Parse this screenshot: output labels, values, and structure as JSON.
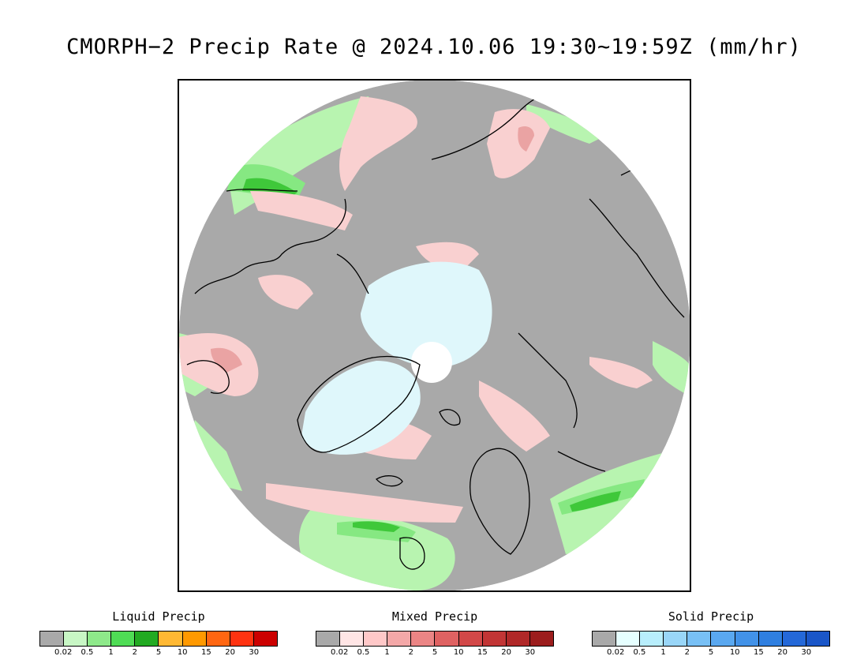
{
  "title": "CMORPH−2 Precip Rate @ 2024.10.06 19:30~19:59Z (mm/hr)",
  "map": {
    "projection": "north-polar-stereographic",
    "colors": {
      "no_precip": "#a9a9a9",
      "liquid_light": "#b8f4b0",
      "liquid_med": "#86e882",
      "liquid_heavy": "#3fc83a",
      "mixed_light": "#f9d0d0",
      "mixed_med": "#eaa3a3",
      "solid_light": "#dff7fb",
      "pole_gap": "#ffffff",
      "coastline": "#000000"
    }
  },
  "legends": [
    {
      "id": "liquid",
      "title": "Liquid Precip",
      "colors": [
        "#a9a9a9",
        "#c8f7c5",
        "#8ee98a",
        "#4fdc55",
        "#22aa22",
        "#ffb833",
        "#ff9900",
        "#ff6611",
        "#ff3311",
        "#cc0000"
      ],
      "ticks": [
        "0.02",
        "0.5",
        "1",
        "2",
        "5",
        "10",
        "15",
        "20",
        "30"
      ]
    },
    {
      "id": "mixed",
      "title": "Mixed Precip",
      "colors": [
        "#a9a9a9",
        "#ffe5e5",
        "#ffc8c8",
        "#f4a8a8",
        "#eb8585",
        "#df6262",
        "#d24848",
        "#c23535",
        "#b02828",
        "#9c1d1d"
      ],
      "ticks": [
        "0.02",
        "0.5",
        "1",
        "2",
        "5",
        "10",
        "15",
        "20",
        "30"
      ]
    },
    {
      "id": "solid",
      "title": "Solid Precip",
      "colors": [
        "#a9a9a9",
        "#e6ffff",
        "#b8eefc",
        "#99d6f8",
        "#78c0f5",
        "#5aa8f0",
        "#4292e8",
        "#2f7fe0",
        "#2468d8",
        "#1a56c8"
      ],
      "ticks": [
        "0.02",
        "0.5",
        "1",
        "2",
        "5",
        "10",
        "15",
        "20",
        "30"
      ]
    }
  ]
}
